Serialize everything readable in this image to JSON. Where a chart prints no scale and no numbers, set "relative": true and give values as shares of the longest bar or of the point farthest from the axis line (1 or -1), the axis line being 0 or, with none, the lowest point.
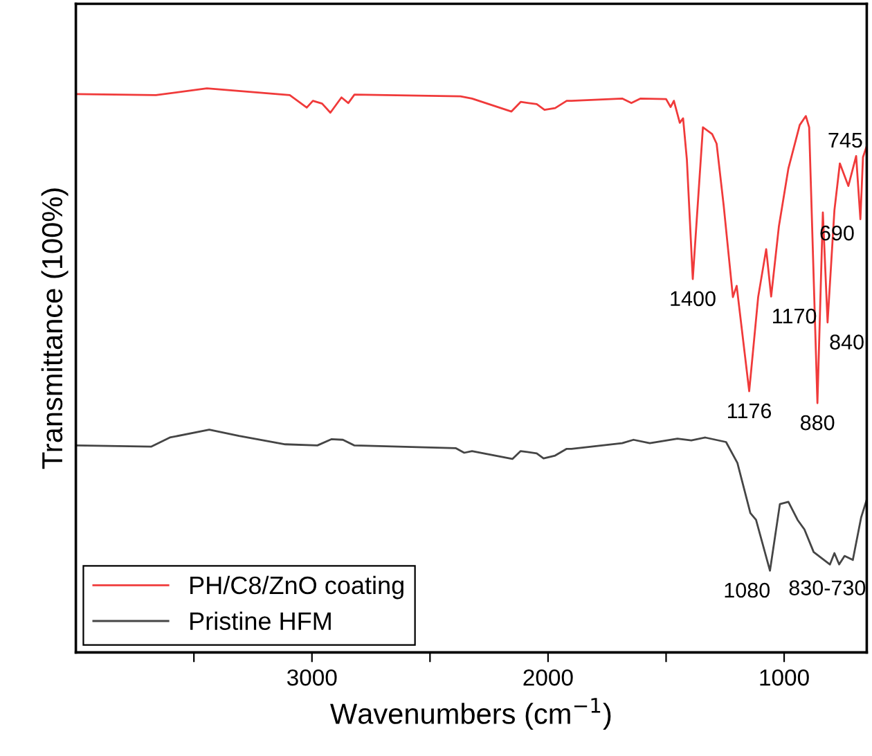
{
  "chart_data": {
    "type": "line",
    "relative": true,
    "xlabel": "Wavenumbers (cm$^{−1}$)",
    "ylabel": "Transmittance (100%)",
    "xlim": [
      4000,
      650
    ],
    "xticks": [
      {
        "value": 3500,
        "label": null
      },
      3000,
      {
        "value": 2500,
        "label": null
      },
      2000,
      {
        "value": 1500,
        "label": null
      },
      1000
    ],
    "tick_labels": "x",
    "legend": "bottom left",
    "grid": false,
    "series": [
      {
        "name": "PH/C8/ZnO coating",
        "color": "#f03a3a",
        "x": [
          4000,
          3661,
          3445,
          3094,
          3022,
          2996,
          2957,
          2922,
          2875,
          2846,
          2820,
          2371,
          2322,
          2155,
          2116,
          2048,
          2015,
          1970,
          1921,
          1901,
          1686,
          1647,
          1608,
          1500,
          1481,
          1467,
          1442,
          1428,
          1412,
          1387,
          1344,
          1305,
          1286,
          1256,
          1217,
          1201,
          1148,
          1110,
          1076,
          1055,
          1022,
          982,
          934,
          908,
          894,
          859,
          836,
          816,
          787,
          764,
          728,
          695,
          677,
          666,
          650
        ],
        "values": [
          0.99,
          0.988,
          1.0,
          0.988,
          0.966,
          0.978,
          0.973,
          0.957,
          0.984,
          0.974,
          0.989,
          0.986,
          0.982,
          0.959,
          0.976,
          0.972,
          0.962,
          0.965,
          0.978,
          0.978,
          0.982,
          0.974,
          0.982,
          0.981,
          0.967,
          0.978,
          0.939,
          0.947,
          0.874,
          0.662,
          0.931,
          0.919,
          0.902,
          0.792,
          0.63,
          0.65,
          0.463,
          0.63,
          0.715,
          0.631,
          0.756,
          0.858,
          0.935,
          0.951,
          0.931,
          0.442,
          0.78,
          0.585,
          0.784,
          0.867,
          0.827,
          0.88,
          0.768,
          0.878,
          0.898
        ]
      },
      {
        "name": "Pristine HFM",
        "color": "#454545",
        "x": [
          4000,
          3680,
          3602,
          3435,
          3309,
          3113,
          2977,
          2918,
          2869,
          2820,
          2390,
          2355,
          2322,
          2151,
          2116,
          2048,
          2019,
          1970,
          1921,
          1901,
          1686,
          1638,
          1569,
          1452,
          1393,
          1334,
          1246,
          1198,
          1143,
          1119,
          1060,
          1018,
          982,
          943,
          914,
          875,
          806,
          787,
          767,
          744,
          709,
          674,
          650
        ],
        "values": [
          0.367,
          0.365,
          0.381,
          0.395,
          0.384,
          0.369,
          0.367,
          0.378,
          0.377,
          0.367,
          0.362,
          0.354,
          0.357,
          0.343,
          0.357,
          0.353,
          0.344,
          0.349,
          0.361,
          0.361,
          0.371,
          0.377,
          0.371,
          0.379,
          0.376,
          0.381,
          0.373,
          0.336,
          0.247,
          0.235,
          0.145,
          0.263,
          0.267,
          0.235,
          0.218,
          0.178,
          0.156,
          0.176,
          0.156,
          0.171,
          0.164,
          0.239,
          0.271
        ]
      }
    ],
    "annotations": [
      {
        "text": "1400",
        "x": 1387,
        "y": 0.662
      },
      {
        "text": "1176",
        "x": 1148,
        "y": 0.463
      },
      {
        "text": "1170",
        "x": 1055,
        "y": 0.631
      },
      {
        "text": "880",
        "x": 859,
        "y": 0.442
      },
      {
        "text": "840",
        "x": 816,
        "y": 0.585
      },
      {
        "text": "745",
        "x": 764,
        "y": 0.867
      },
      {
        "text": "690",
        "x": 677,
        "y": 0.768
      },
      {
        "text": "1080",
        "x": 1060,
        "y": 0.145
      },
      {
        "text": "830-730",
        "x": 767,
        "y": 0.156
      }
    ]
  }
}
